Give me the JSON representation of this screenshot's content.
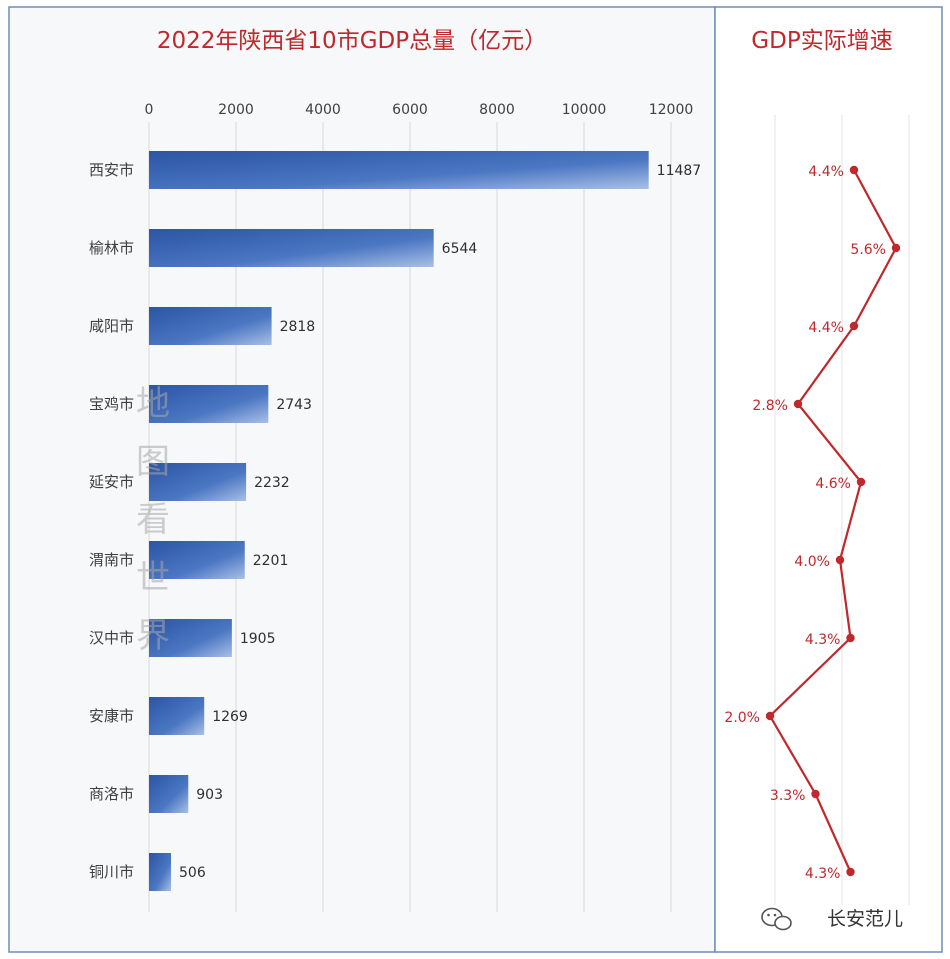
{
  "chart_data": [
    {
      "type": "bar",
      "orientation": "horizontal",
      "title": "2022年陕西省10市GDP总量（亿元）",
      "categories": [
        "西安市",
        "榆林市",
        "咸阳市",
        "宝鸡市",
        "延安市",
        "渭南市",
        "汉中市",
        "安康市",
        "商洛市",
        "铜川市"
      ],
      "values": [
        11487,
        6544,
        2818,
        2743,
        2232,
        2201,
        1905,
        1269,
        903,
        506
      ],
      "x_ticks": [
        "0",
        "2000",
        "4000",
        "6000",
        "8000",
        "10000",
        "12000"
      ],
      "xlim": [
        0,
        12000
      ],
      "grid": true,
      "data_labels": true,
      "bar_color": "#3b66b6"
    },
    {
      "type": "line",
      "title": "GDP实际增速",
      "categories": [
        "西安市",
        "榆林市",
        "咸阳市",
        "宝鸡市",
        "延安市",
        "渭南市",
        "汉中市",
        "安康市",
        "商洛市",
        "铜川市"
      ],
      "values": [
        4.4,
        5.6,
        4.4,
        2.8,
        4.6,
        4.0,
        4.3,
        2.0,
        3.3,
        4.3
      ],
      "labels": [
        "4.4%",
        "5.6%",
        "4.4%",
        "2.8%",
        "4.6%",
        "4.0%",
        "4.3%",
        "2.0%",
        "3.3%",
        "4.3%"
      ],
      "grid": true,
      "line_color": "#c0282c"
    }
  ],
  "watermark": [
    "地",
    "图",
    "看",
    "世",
    "界"
  ],
  "footer": {
    "brand": "长安范儿"
  }
}
